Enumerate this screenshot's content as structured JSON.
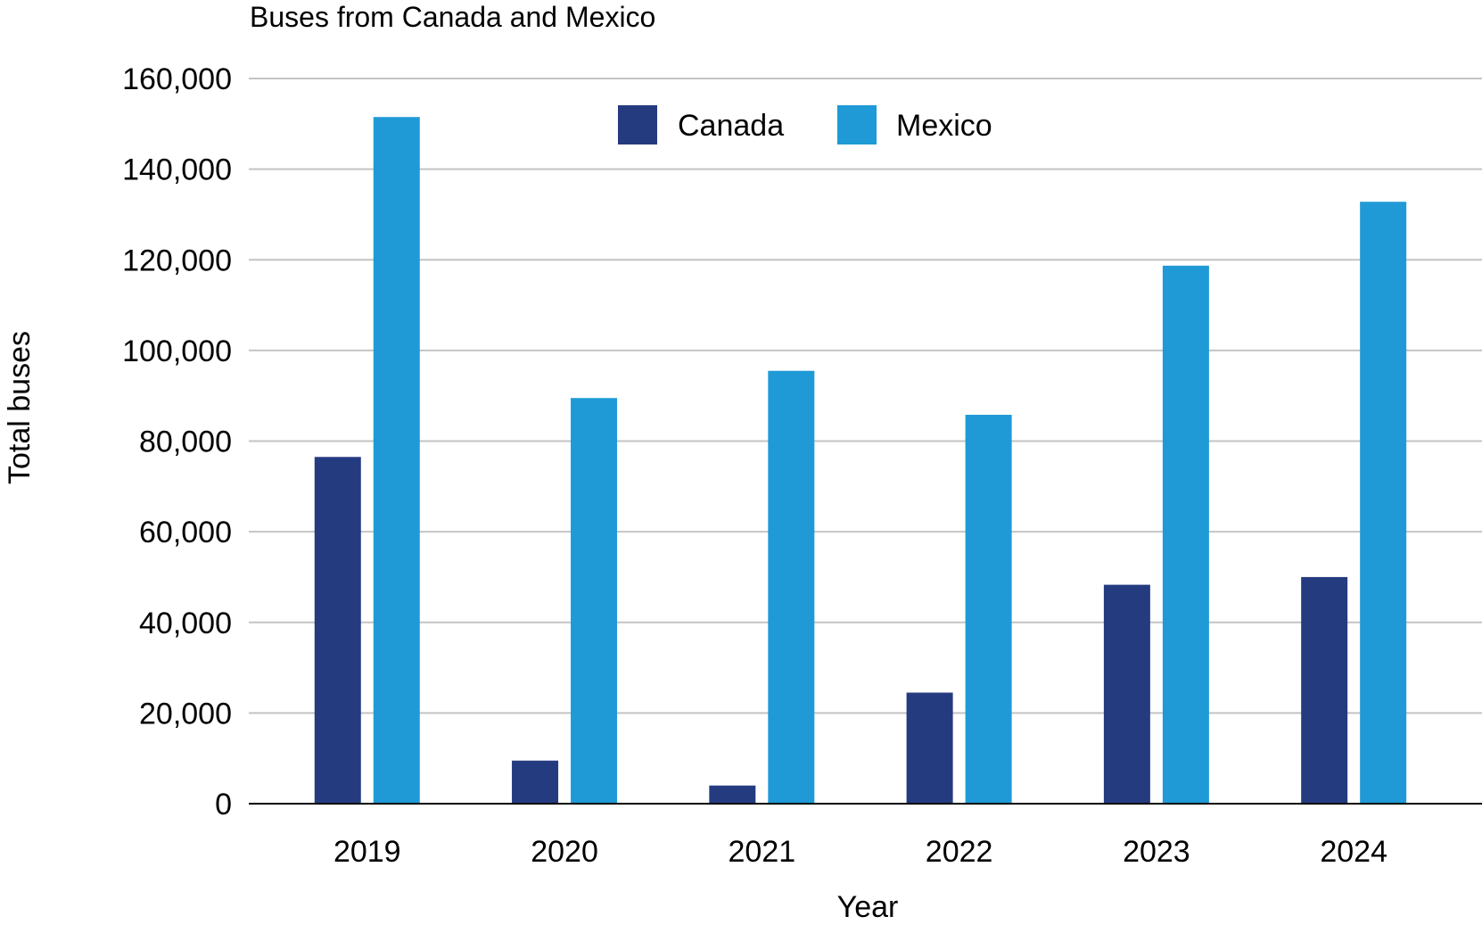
{
  "chart_data": {
    "type": "bar",
    "title": "Buses from Canada and Mexico",
    "xlabel": "Year",
    "ylabel": "Total buses",
    "categories": [
      "2019",
      "2020",
      "2021",
      "2022",
      "2023",
      "2024"
    ],
    "series": [
      {
        "name": "Canada",
        "color": "#253b80",
        "values": [
          76500,
          9500,
          4000,
          24500,
          48300,
          50000
        ]
      },
      {
        "name": "Mexico",
        "color": "#1f9ad6",
        "values": [
          151500,
          89500,
          95500,
          85800,
          118700,
          132800
        ]
      }
    ],
    "ylim": [
      0,
      160000
    ],
    "yticks": [
      0,
      20000,
      40000,
      60000,
      80000,
      100000,
      120000,
      140000,
      160000
    ],
    "ytick_labels": [
      "0",
      "20,000",
      "40,000",
      "60,000",
      "80,000",
      "100,000",
      "120,000",
      "140,000",
      "160,000"
    ],
    "grid": true,
    "legend_position": "top-center"
  }
}
